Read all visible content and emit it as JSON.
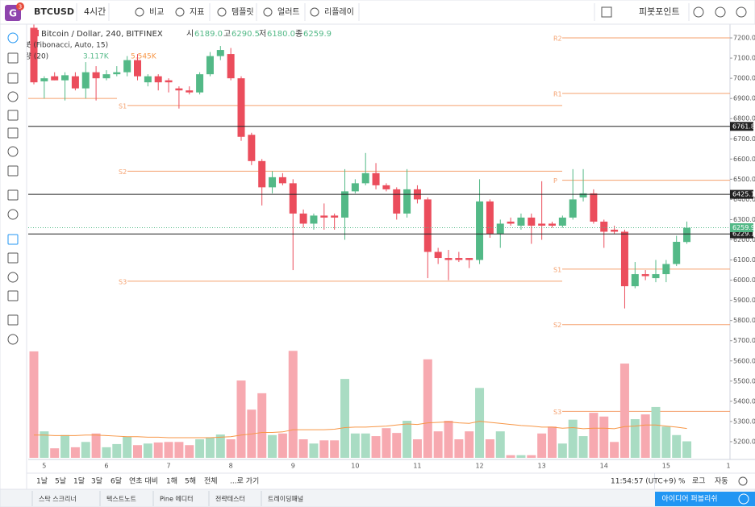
{
  "app": {
    "logo": "G",
    "badge": "3"
  },
  "toolbar": {
    "symbol": "BTCUSD",
    "interval": "4시간",
    "items": [
      "비교",
      "지표",
      "템플릿",
      "얼러트",
      "리플레이"
    ],
    "pivot": "피봇포인트"
  },
  "chart_data": {
    "type": "candlestick",
    "title": "Bitcoin / Dollar, 240, BITFINEX",
    "ohlc_names": [
      "시",
      "고",
      "저",
      "종"
    ],
    "ohlc_labels": [
      "6189.0",
      "6290.5",
      "6180.0",
      "6259.9"
    ],
    "pivot_legend": "피봇 (Fibonacci, Auto, 15)",
    "volume_legend": "거래량 (20)",
    "volume_labels": [
      "3.117K",
      "5.545K"
    ],
    "categories": [
      null,
      "5",
      null,
      null,
      null,
      null,
      null,
      "6",
      null,
      null,
      null,
      null,
      null,
      "7",
      null,
      null,
      null,
      null,
      null,
      "8",
      null,
      null,
      null,
      null,
      null,
      "9",
      null,
      null,
      null,
      null,
      null,
      "10",
      null,
      null,
      null,
      null,
      null,
      "11",
      null,
      null,
      null,
      null,
      null,
      "12",
      null,
      null,
      null,
      null,
      null,
      "13",
      null,
      null,
      null,
      null,
      null,
      "14",
      null,
      null,
      null,
      null,
      null,
      "15",
      null,
      null
    ],
    "x_axis_end_label": "1",
    "open": [
      7250,
      6985,
      7010,
      6990,
      7010,
      6950,
      7030,
      7000,
      7020,
      7030,
      7090,
      6980,
      7010,
      6990,
      6950,
      6940,
      6930,
      7020,
      7110,
      7120,
      7000,
      6720,
      6590,
      6460,
      6510,
      6480,
      6330,
      6280,
      6320,
      6320,
      6310,
      6440,
      6480,
      6530,
      6470,
      6450,
      6330,
      6450,
      6400,
      6140,
      6110,
      6110,
      6110,
      6100,
      6390,
      6230,
      6290,
      6270,
      6310,
      6280,
      6280,
      6270,
      6310,
      6410,
      6430,
      6290,
      6250,
      6240,
      5970,
      6030,
      6010,
      6030,
      6080,
      6189
    ],
    "high": [
      7270,
      7010,
      7030,
      7030,
      7030,
      7080,
      7060,
      7040,
      7060,
      7110,
      7120,
      7020,
      7020,
      7000,
      6960,
      6960,
      7030,
      7130,
      7160,
      7150,
      7010,
      6730,
      6600,
      6540,
      6530,
      6500,
      6350,
      6330,
      6380,
      6330,
      6550,
      6500,
      6630,
      6580,
      6480,
      6460,
      6550,
      6470,
      6410,
      6160,
      6150,
      6140,
      6110,
      6500,
      6400,
      6300,
      6310,
      6330,
      6330,
      6490,
      6290,
      6320,
      6550,
      6550,
      6450,
      6300,
      6270,
      6250,
      6090,
      6050,
      6100,
      6100,
      6220,
      6290.5
    ],
    "low": [
      6970,
      6900,
      6990,
      6890,
      6940,
      6900,
      6890,
      6990,
      7010,
      7010,
      6990,
      6960,
      6940,
      6930,
      6850,
      6920,
      6920,
      7010,
      7090,
      6990,
      6690,
      6570,
      6370,
      6430,
      6470,
      6050,
      6260,
      6250,
      6250,
      6250,
      6200,
      6430,
      6470,
      6450,
      6440,
      6300,
      6310,
      6380,
      6010,
      6080,
      6000,
      6090,
      6060,
      6080,
      6210,
      6160,
      6270,
      6250,
      6180,
      6200,
      6260,
      6260,
      6300,
      6390,
      6280,
      6160,
      6230,
      5860,
      5960,
      6000,
      5990,
      5990,
      6070,
      6180
    ],
    "close": [
      6980,
      7000,
      6990,
      7015,
      6950,
      7030,
      7000,
      7020,
      7030,
      7090,
      7010,
      7010,
      6980,
      6980,
      6940,
      6930,
      7020,
      7110,
      7140,
      7000,
      6710,
      6590,
      6460,
      6510,
      6480,
      6330,
      6280,
      6320,
      6310,
      6310,
      6440,
      6480,
      6530,
      6470,
      6450,
      6330,
      6450,
      6400,
      6140,
      6110,
      6100,
      6100,
      6100,
      6390,
      6230,
      6280,
      6280,
      6310,
      6270,
      6270,
      6270,
      6310,
      6400,
      6430,
      6290,
      6240,
      6240,
      5970,
      6030,
      6020,
      6030,
      6080,
      6190,
      6259.9
    ],
    "volume": [
      20.1,
      5.0,
      1.8,
      4.3,
      2.0,
      3.0,
      4.6,
      2.0,
      2.6,
      4.0,
      2.4,
      2.7,
      2.9,
      3.0,
      3.0,
      2.4,
      3.5,
      3.8,
      4.4,
      3.5,
      14.6,
      9.1,
      12.2,
      4.3,
      4.6,
      20.2,
      3.5,
      2.7,
      3.3,
      3.3,
      14.9,
      4.6,
      4.6,
      4.1,
      5.6,
      4.7,
      7.0,
      3.5,
      18.6,
      5.0,
      7.0,
      3.5,
      5.0,
      13.2,
      3.5,
      5.0,
      0.5,
      0.5,
      0.5,
      4.6,
      5.9,
      2.7,
      7.2,
      4.1,
      8.5,
      7.8,
      3.0,
      17.8,
      7.3,
      8.2,
      9.6,
      5.9,
      4.3,
      3.117
    ],
    "volume_ma": [
      4.3,
      4.3,
      4.2,
      4.2,
      4.2,
      4.3,
      4.3,
      4.2,
      4.1,
      4.0,
      4.0,
      3.9,
      3.9,
      3.8,
      3.8,
      3.8,
      3.8,
      3.8,
      3.9,
      4.0,
      4.3,
      4.5,
      4.8,
      4.8,
      4.9,
      5.3,
      5.3,
      5.3,
      5.3,
      5.4,
      5.7,
      5.8,
      5.8,
      5.9,
      6.0,
      6.2,
      6.4,
      6.3,
      6.6,
      6.7,
      6.8,
      6.6,
      6.5,
      6.9,
      6.7,
      6.5,
      6.3,
      6.1,
      6.0,
      5.8,
      5.8,
      5.6,
      5.7,
      5.5,
      5.6,
      5.6,
      5.5,
      5.9,
      6.0,
      6.2,
      6.2,
      6.0,
      5.8,
      5.545
    ],
    "ylim": [
      5112,
      7268
    ],
    "yticks": [
      {
        "value": 7200,
        "label": "7200.0"
      },
      {
        "value": 7100,
        "label": "7100.0"
      },
      {
        "value": 7000,
        "label": "7000.0"
      },
      {
        "value": 6900,
        "label": "6900.0"
      },
      {
        "value": 6800,
        "label": "6800.0"
      },
      {
        "value": 6700,
        "label": "6700.0"
      },
      {
        "value": 6600,
        "label": "6600.0"
      },
      {
        "value": 6500,
        "label": "6500.0"
      },
      {
        "value": 6400,
        "label": "6400.0"
      },
      {
        "value": 6300,
        "label": "6300.0"
      },
      {
        "value": 6200,
        "label": "6200.0"
      },
      {
        "value": 6100,
        "label": "6100.0"
      },
      {
        "value": 6000,
        "label": "6000.0"
      },
      {
        "value": 5900,
        "label": "5900.0"
      },
      {
        "value": 5800,
        "label": "5800.0"
      },
      {
        "value": 5700,
        "label": "5700.0"
      },
      {
        "value": 5600,
        "label": "5600.0"
      },
      {
        "value": 5500,
        "label": "5500.0"
      },
      {
        "value": 5400,
        "label": "5400.0"
      },
      {
        "value": 5300,
        "label": "5300.0"
      },
      {
        "value": 5200,
        "label": "5200.0"
      }
    ],
    "pivots": [
      {
        "levels": [
          {
            "value": 6900
          }
        ]
      },
      {
        "levels": [
          {
            "label": "S1",
            "value": 6865
          },
          {
            "label": "S2",
            "value": 6540
          },
          {
            "label": "S3",
            "value": 5995
          }
        ]
      },
      {
        "levels": [
          {
            "label": "R2",
            "value": 7200
          },
          {
            "label": "R1",
            "value": 6925
          },
          {
            "label": "P",
            "value": 6495
          },
          {
            "label": "S1",
            "value": 6055
          },
          {
            "label": "S2",
            "value": 5780
          },
          {
            "label": "S3",
            "value": 5350
          }
        ]
      }
    ],
    "price_lines": [
      6761.8,
      6425.1,
      6229.1
    ],
    "up_color": "#53b987",
    "down_color": "#eb4d5c",
    "volume_up_color": "#a9dcc3",
    "volume_down_color": "#f7a9b0",
    "volume_ma_color": "#f79646",
    "pivot_color": "#f5a06e",
    "price_line_color": "#222222"
  },
  "bottom_bar": {
    "ranges": [
      "1날",
      "5날",
      "1달",
      "3달",
      "6달",
      "연초 대비",
      "1해",
      "5해",
      "전체"
    ],
    "goto": "...로 가기",
    "time": "11:54:57 (UTC+9)",
    "options": [
      "%",
      "로그",
      "자동"
    ]
  },
  "footer": {
    "tabs": [
      "스탁 스크리너",
      "텍스트노트",
      "Pine 에디터",
      "전략테스터",
      "트레이딩패널"
    ],
    "publish": "아이디어 퍼블리쉬"
  }
}
